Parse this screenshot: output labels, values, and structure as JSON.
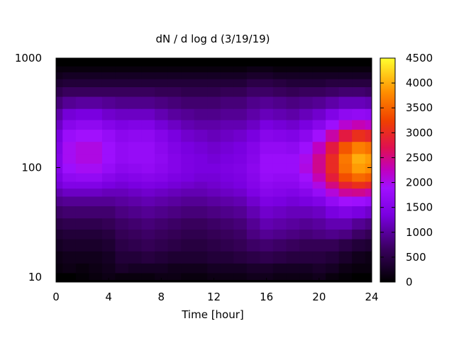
{
  "chart_data": {
    "type": "heatmap",
    "title": "dN / d log d (3/19/19)",
    "xlabel": "Time [hour]",
    "ylabel": "",
    "x_range": [
      0,
      24
    ],
    "y_range": [
      9,
      1000
    ],
    "y_scale": "log",
    "x_ticks": [
      0,
      4,
      8,
      12,
      16,
      20,
      24
    ],
    "x_tick_labels": [
      "0",
      "4",
      "8",
      "12",
      "16",
      "20",
      "24"
    ],
    "y_ticks": [
      10,
      100,
      1000
    ],
    "y_tick_labels": [
      "10",
      "100",
      "1000"
    ],
    "colorbar": {
      "range": [
        0,
        4500
      ],
      "ticks": [
        0,
        500,
        1000,
        1500,
        2000,
        2500,
        3000,
        3500,
        4000,
        4500
      ],
      "tick_labels": [
        "0",
        "500",
        "1000",
        "1500",
        "2000",
        "2500",
        "3000",
        "3500",
        "4000",
        "4500"
      ],
      "palette": "black-purple-red-yellow"
    },
    "grid": false,
    "time_hours": [
      0,
      1,
      2,
      3,
      4,
      5,
      6,
      7,
      8,
      9,
      10,
      11,
      12,
      13,
      14,
      15,
      16,
      17,
      18,
      19,
      20,
      21,
      22,
      23,
      24
    ],
    "diameter_nm": [
      9,
      10,
      12,
      15,
      20,
      25,
      30,
      40,
      50,
      60,
      70,
      80,
      100,
      120,
      150,
      200,
      250,
      300,
      400,
      500,
      600,
      700,
      800,
      900
    ],
    "values": [
      [
        0,
        0,
        0,
        0,
        0,
        0,
        0,
        0,
        0,
        0,
        0,
        0,
        0,
        0,
        0,
        0,
        0,
        0,
        0,
        0,
        0,
        0,
        0,
        0,
        0
      ],
      [
        0,
        0,
        50,
        100,
        150,
        100,
        100,
        100,
        150,
        150,
        100,
        100,
        150,
        150,
        150,
        200,
        200,
        150,
        150,
        150,
        200,
        100,
        50,
        0,
        0
      ],
      [
        100,
        150,
        100,
        150,
        200,
        300,
        250,
        250,
        250,
        200,
        200,
        200,
        250,
        250,
        250,
        300,
        300,
        250,
        250,
        250,
        300,
        250,
        150,
        100,
        100
      ],
      [
        150,
        200,
        200,
        200,
        250,
        400,
        400,
        450,
        400,
        350,
        350,
        350,
        400,
        400,
        450,
        500,
        550,
        500,
        450,
        450,
        450,
        400,
        300,
        200,
        150
      ],
      [
        250,
        300,
        300,
        300,
        350,
        500,
        550,
        600,
        550,
        500,
        450,
        450,
        500,
        550,
        600,
        700,
        750,
        700,
        650,
        600,
        600,
        600,
        500,
        400,
        350
      ],
      [
        350,
        400,
        400,
        400,
        450,
        600,
        650,
        700,
        650,
        600,
        550,
        550,
        600,
        650,
        700,
        850,
        950,
        900,
        850,
        800,
        850,
        900,
        850,
        700,
        600
      ],
      [
        500,
        550,
        550,
        550,
        600,
        700,
        750,
        800,
        750,
        700,
        650,
        650,
        700,
        750,
        800,
        950,
        1100,
        1050,
        1000,
        950,
        1000,
        1100,
        1100,
        950,
        850
      ],
      [
        700,
        750,
        750,
        750,
        750,
        850,
        900,
        950,
        900,
        850,
        800,
        800,
        850,
        900,
        950,
        1100,
        1250,
        1200,
        1150,
        1150,
        1200,
        1350,
        1450,
        1350,
        1250
      ],
      [
        900,
        950,
        950,
        950,
        950,
        1000,
        1050,
        1100,
        1050,
        1000,
        950,
        950,
        1000,
        1050,
        1100,
        1250,
        1400,
        1350,
        1300,
        1350,
        1450,
        1700,
        1900,
        1850,
        1750
      ],
      [
        1100,
        1200,
        1200,
        1200,
        1150,
        1150,
        1200,
        1250,
        1200,
        1150,
        1100,
        1100,
        1150,
        1200,
        1250,
        1400,
        1550,
        1500,
        1450,
        1550,
        1750,
        2100,
        2400,
        2450,
        2350
      ],
      [
        1300,
        1450,
        1450,
        1450,
        1350,
        1300,
        1350,
        1400,
        1350,
        1300,
        1250,
        1200,
        1250,
        1300,
        1350,
        1500,
        1650,
        1600,
        1600,
        1750,
        2050,
        2500,
        2900,
        3050,
        2950
      ],
      [
        1400,
        1650,
        1700,
        1700,
        1550,
        1450,
        1500,
        1550,
        1500,
        1400,
        1350,
        1300,
        1300,
        1350,
        1400,
        1550,
        1750,
        1700,
        1700,
        1900,
        2300,
        2850,
        3350,
        3550,
        3450
      ],
      [
        1500,
        1850,
        1950,
        1950,
        1750,
        1600,
        1650,
        1700,
        1600,
        1500,
        1400,
        1350,
        1350,
        1400,
        1450,
        1600,
        1800,
        1800,
        1800,
        2050,
        2450,
        3000,
        3600,
        3900,
        3800
      ],
      [
        1500,
        1950,
        2050,
        2050,
        1850,
        1700,
        1750,
        1750,
        1650,
        1500,
        1400,
        1350,
        1300,
        1350,
        1400,
        1550,
        1800,
        1800,
        1800,
        2000,
        2450,
        3000,
        3650,
        4000,
        3900
      ],
      [
        1450,
        1950,
        2050,
        2050,
        1850,
        1700,
        1750,
        1750,
        1600,
        1450,
        1350,
        1300,
        1250,
        1300,
        1350,
        1500,
        1700,
        1700,
        1650,
        1850,
        2250,
        2800,
        3400,
        3700,
        3600
      ],
      [
        1350,
        1800,
        1900,
        1900,
        1750,
        1600,
        1650,
        1650,
        1500,
        1350,
        1250,
        1200,
        1150,
        1200,
        1250,
        1350,
        1550,
        1500,
        1450,
        1600,
        1900,
        2350,
        2800,
        3050,
        2950
      ],
      [
        1200,
        1550,
        1650,
        1650,
        1500,
        1400,
        1450,
        1450,
        1300,
        1200,
        1100,
        1050,
        1050,
        1100,
        1100,
        1200,
        1350,
        1300,
        1250,
        1350,
        1550,
        1850,
        2150,
        2300,
        2200
      ],
      [
        1050,
        1300,
        1350,
        1350,
        1250,
        1200,
        1200,
        1200,
        1100,
        1000,
        950,
        900,
        900,
        950,
        950,
        1050,
        1150,
        1100,
        1050,
        1150,
        1250,
        1450,
        1650,
        1700,
        1650
      ],
      [
        800,
        950,
        1000,
        1000,
        950,
        900,
        900,
        900,
        850,
        800,
        750,
        750,
        750,
        800,
        800,
        900,
        950,
        900,
        850,
        900,
        950,
        1050,
        1150,
        1150,
        1100
      ],
      [
        550,
        650,
        650,
        650,
        650,
        650,
        650,
        650,
        600,
        600,
        550,
        550,
        550,
        600,
        600,
        700,
        700,
        650,
        600,
        650,
        650,
        700,
        750,
        750,
        700
      ],
      [
        350,
        400,
        400,
        400,
        400,
        400,
        400,
        400,
        400,
        400,
        400,
        400,
        400,
        400,
        400,
        500,
        500,
        450,
        400,
        400,
        400,
        450,
        450,
        450,
        450
      ],
      [
        200,
        250,
        250,
        250,
        250,
        250,
        250,
        250,
        250,
        250,
        250,
        250,
        250,
        250,
        250,
        300,
        300,
        250,
        250,
        250,
        250,
        250,
        250,
        250,
        250
      ],
      [
        100,
        100,
        100,
        100,
        100,
        100,
        100,
        100,
        100,
        100,
        100,
        100,
        100,
        100,
        100,
        150,
        150,
        100,
        100,
        100,
        100,
        100,
        100,
        100,
        100
      ],
      [
        0,
        0,
        0,
        0,
        0,
        0,
        0,
        0,
        0,
        0,
        0,
        0,
        0,
        0,
        0,
        0,
        0,
        0,
        0,
        0,
        0,
        0,
        0,
        0,
        0
      ]
    ]
  }
}
